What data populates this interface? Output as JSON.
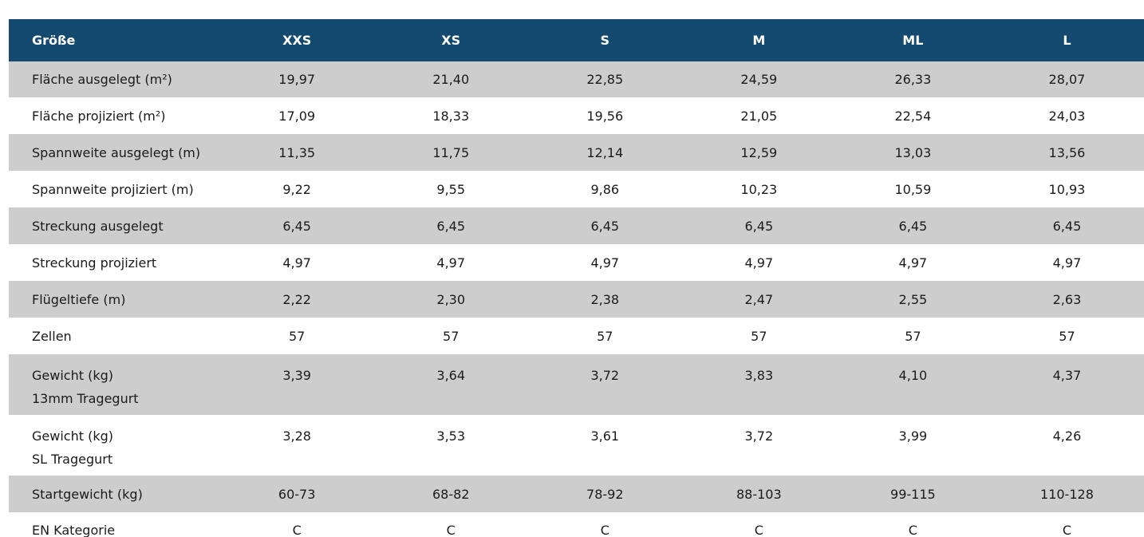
{
  "table": {
    "headers": [
      "Größe",
      "XXS",
      "XS",
      "S",
      "M",
      "ML",
      "L"
    ],
    "rows": [
      {
        "label": "Fläche ausgelegt (m²)",
        "sublabel": "",
        "values": [
          "19,97",
          "21,40",
          "22,85",
          "24,59",
          "26,33",
          "28,07"
        ]
      },
      {
        "label": "Fläche projiziert (m²)",
        "sublabel": "",
        "values": [
          "17,09",
          "18,33",
          "19,56",
          "21,05",
          "22,54",
          "24,03"
        ]
      },
      {
        "label": "Spannweite ausgelegt (m)",
        "sublabel": "",
        "values": [
          "11,35",
          "11,75",
          "12,14",
          "12,59",
          "13,03",
          "13,56"
        ]
      },
      {
        "label": "Spannweite projiziert (m)",
        "sublabel": "",
        "values": [
          "9,22",
          "9,55",
          "9,86",
          "10,23",
          "10,59",
          "10,93"
        ]
      },
      {
        "label": "Streckung ausgelegt",
        "sublabel": "",
        "values": [
          "6,45",
          "6,45",
          "6,45",
          "6,45",
          "6,45",
          "6,45"
        ]
      },
      {
        "label": "Streckung projiziert",
        "sublabel": "",
        "values": [
          "4,97",
          "4,97",
          "4,97",
          "4,97",
          "4,97",
          "4,97"
        ]
      },
      {
        "label": "Flügeltiefe (m)",
        "sublabel": "",
        "values": [
          "2,22",
          "2,30",
          "2,38",
          "2,47",
          "2,55",
          "2,63"
        ]
      },
      {
        "label": "Zellen",
        "sublabel": "",
        "values": [
          "57",
          "57",
          "57",
          "57",
          "57",
          "57"
        ]
      },
      {
        "label": "Gewicht (kg)",
        "sublabel": "13mm Tragegurt",
        "values": [
          "3,39",
          "3,64",
          "3,72",
          "3,83",
          "4,10",
          "4,37"
        ]
      },
      {
        "label": "Gewicht (kg)",
        "sublabel": "SL Tragegurt",
        "values": [
          "3,28",
          "3,53",
          "3,61",
          "3,72",
          "3,99",
          "4,26"
        ]
      },
      {
        "label": "Startgewicht (kg)",
        "sublabel": "",
        "values": [
          "60-73",
          "68-82",
          "78-92",
          "88-103",
          "99-115",
          "110-128"
        ]
      },
      {
        "label": "EN Kategorie",
        "sublabel": "",
        "values": [
          "C",
          "C",
          "C",
          "C",
          "C",
          "C"
        ]
      }
    ]
  },
  "colors": {
    "header_bg": "#144a70",
    "header_text": "#ffffff",
    "row_shaded": "#cdcdcd",
    "row_plain": "#ffffff"
  }
}
